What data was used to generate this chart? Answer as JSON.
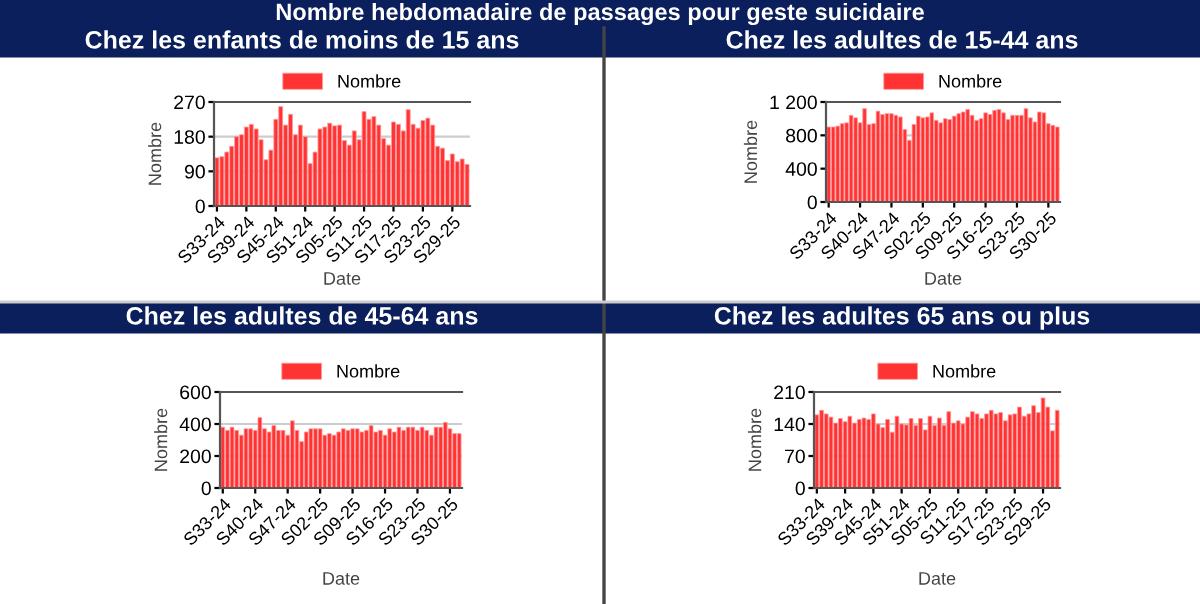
{
  "chart_data": [
    {
      "type": "bar",
      "title": "Chez les enfants de moins de 15 ans",
      "annotations": [
        "Nombre hebdomadaire de passages pour geste suicidaire"
      ],
      "xlabel": "Date",
      "ylabel": "Nombre",
      "legend": "top",
      "grid": "y",
      "categories": [
        "S33-24",
        null,
        null,
        null,
        null,
        null,
        "S39-24",
        null,
        null,
        null,
        null,
        null,
        "S45-24",
        null,
        null,
        null,
        null,
        null,
        "S51-24",
        null,
        null,
        null,
        null,
        null,
        "S05-25",
        null,
        null,
        null,
        null,
        null,
        "S11-25",
        null,
        null,
        null,
        null,
        null,
        "S17-25",
        null,
        null,
        null,
        null,
        null,
        "S23-25",
        null,
        null,
        null,
        null,
        null,
        "S29-25",
        null,
        null,
        null
      ],
      "series": [
        {
          "name": "Nombre",
          "color": "#ff3333",
          "values": [
            125,
            128,
            140,
            155,
            180,
            185,
            205,
            212,
            200,
            172,
            120,
            145,
            225,
            258,
            210,
            238,
            185,
            210,
            180,
            110,
            140,
            200,
            205,
            215,
            208,
            210,
            170,
            158,
            195,
            172,
            245,
            225,
            232,
            210,
            175,
            158,
            218,
            212,
            195,
            250,
            212,
            202,
            222,
            228,
            210,
            155,
            150,
            118,
            135,
            115,
            122,
            108
          ]
        }
      ],
      "ylim": [
        0,
        270
      ],
      "yticks": [
        0,
        90,
        180,
        270
      ]
    },
    {
      "type": "bar",
      "title": "Chez les adultes de 15-44 ans",
      "xlabel": "Date",
      "ylabel": "Nombre",
      "legend": "top",
      "grid": "y",
      "categories": [
        "S33-24",
        null,
        null,
        null,
        null,
        null,
        null,
        "S40-24",
        null,
        null,
        null,
        null,
        null,
        null,
        "S47-24",
        null,
        null,
        null,
        null,
        null,
        null,
        "S02-25",
        null,
        null,
        null,
        null,
        null,
        null,
        "S09-25",
        null,
        null,
        null,
        null,
        null,
        null,
        "S16-25",
        null,
        null,
        null,
        null,
        null,
        null,
        "S23-25",
        null,
        null,
        null,
        null,
        null,
        null,
        "S30-25",
        null,
        null
      ],
      "series": [
        {
          "name": "Nombre",
          "color": "#ff3333",
          "values": [
            900,
            900,
            910,
            940,
            950,
            1040,
            1010,
            950,
            1120,
            930,
            940,
            1090,
            1050,
            1060,
            1060,
            1040,
            1020,
            870,
            740,
            930,
            1030,
            1010,
            1020,
            1070,
            980,
            950,
            1000,
            990,
            1030,
            1060,
            1080,
            1110,
            1040,
            980,
            1000,
            1070,
            1050,
            1100,
            1110,
            1070,
            990,
            1040,
            1040,
            1040,
            1120,
            1010,
            960,
            1080,
            1070,
            940,
            920,
            900
          ]
        }
      ],
      "ylim": [
        0,
        1200
      ],
      "yticks": [
        0,
        400,
        800,
        {
          "value": 1200,
          "label": "1 200"
        }
      ]
    },
    {
      "type": "bar",
      "title": "Chez les adultes de 45-64 ans",
      "xlabel": "Date",
      "ylabel": "Nombre",
      "legend": "top",
      "grid": "y",
      "categories": [
        "S33-24",
        null,
        null,
        null,
        null,
        null,
        null,
        "S40-24",
        null,
        null,
        null,
        null,
        null,
        null,
        "S47-24",
        null,
        null,
        null,
        null,
        null,
        null,
        "S02-25",
        null,
        null,
        null,
        null,
        null,
        null,
        "S09-25",
        null,
        null,
        null,
        null,
        null,
        null,
        "S16-25",
        null,
        null,
        null,
        null,
        null,
        null,
        "S23-25",
        null,
        null,
        null,
        null,
        null,
        null,
        "S30-25",
        null,
        null
      ],
      "series": [
        {
          "name": "Nombre",
          "color": "#ff3333",
          "values": [
            380,
            360,
            380,
            360,
            330,
            370,
            370,
            360,
            440,
            370,
            350,
            390,
            360,
            360,
            330,
            420,
            360,
            290,
            350,
            370,
            370,
            370,
            330,
            340,
            330,
            350,
            370,
            360,
            370,
            370,
            350,
            360,
            390,
            350,
            360,
            330,
            370,
            350,
            380,
            360,
            380,
            380,
            360,
            380,
            360,
            330,
            380,
            380,
            410,
            370,
            340,
            340
          ]
        }
      ],
      "ylim": [
        0,
        600
      ],
      "yticks": [
        0,
        200,
        400,
        600
      ]
    },
    {
      "type": "bar",
      "title": "Chez les adultes 65 ans ou plus",
      "xlabel": "Date",
      "ylabel": "Nombre",
      "legend": "top",
      "grid": "y",
      "categories": [
        "S33-24",
        null,
        null,
        null,
        null,
        null,
        "S39-24",
        null,
        null,
        null,
        null,
        null,
        "S45-24",
        null,
        null,
        null,
        null,
        null,
        "S51-24",
        null,
        null,
        null,
        null,
        null,
        "S05-25",
        null,
        null,
        null,
        null,
        null,
        "S11-25",
        null,
        null,
        null,
        null,
        null,
        "S17-25",
        null,
        null,
        null,
        null,
        null,
        "S23-25",
        null,
        null,
        null,
        null,
        null,
        "S29-25",
        null,
        null,
        null
      ],
      "series": [
        {
          "name": "Nombre",
          "color": "#ff3333",
          "values": [
            160,
            170,
            162,
            155,
            142,
            152,
            145,
            157,
            142,
            150,
            153,
            150,
            162,
            140,
            132,
            150,
            122,
            157,
            140,
            138,
            152,
            137,
            152,
            127,
            157,
            137,
            153,
            137,
            167,
            142,
            147,
            140,
            155,
            167,
            162,
            152,
            162,
            170,
            162,
            165,
            147,
            160,
            162,
            177,
            157,
            162,
            180,
            165,
            197,
            177,
            125,
            170
          ]
        }
      ],
      "ylim": [
        0,
        210
      ],
      "yticks": [
        0,
        70,
        140,
        210
      ]
    }
  ]
}
